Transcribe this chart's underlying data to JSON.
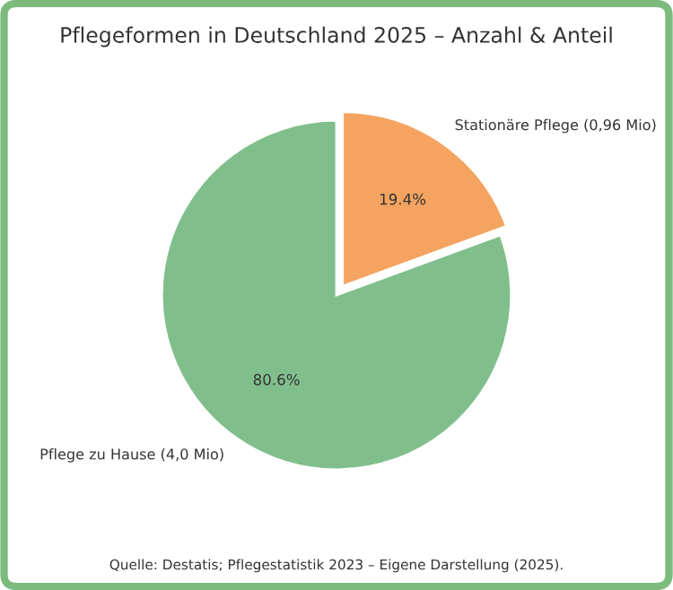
{
  "chart_data": {
    "type": "pie",
    "title": "Pflegeformen in Deutschland 2025 – Anzahl & Anteil",
    "categories": [
      "Stationäre Pflege (0,96 Mio)",
      "Pflege zu Hause (4,0 Mio)"
    ],
    "values": [
      19.4,
      80.6
    ],
    "colors": [
      "#f4a460",
      "#80bf8c"
    ],
    "value_labels": [
      "19.4%",
      "80.6%"
    ],
    "annotations": [
      "Quelle: Destatis; Pflegestatistik 2023 – Eigene Darstellung (2025)."
    ],
    "legend": false
  }
}
